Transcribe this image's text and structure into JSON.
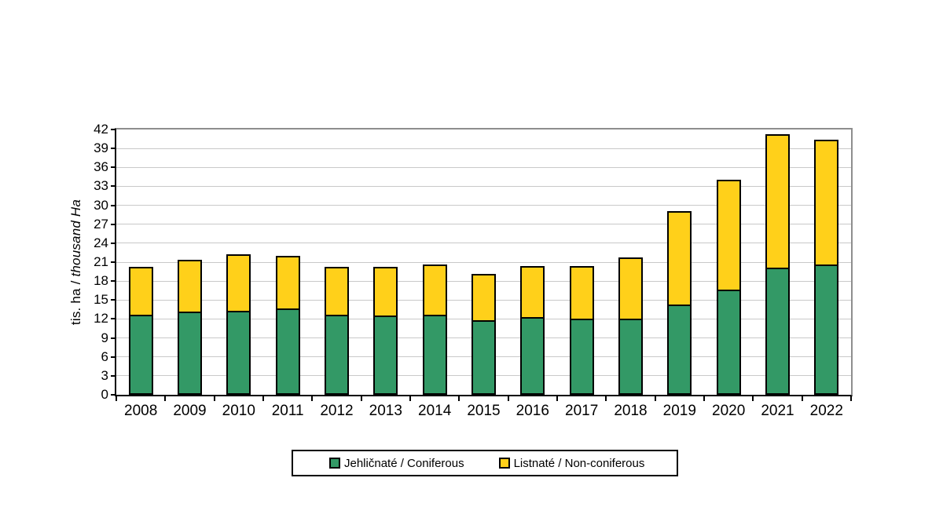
{
  "figure": {
    "ylabel_regular": "tis. ha / ",
    "ylabel_italic": "thousand Ha"
  },
  "chart_data": {
    "type": "bar",
    "stacked": true,
    "title": "",
    "xlabel": "",
    "ylabel": "tis. ha / thousand Ha",
    "categories": [
      "2008",
      "2009",
      "2010",
      "2011",
      "2012",
      "2013",
      "2014",
      "2015",
      "2016",
      "2017",
      "2018",
      "2019",
      "2020",
      "2021",
      "2022"
    ],
    "series": [
      {
        "name": "Jehličnaté / Coniferous",
        "color": "#339966",
        "values": [
          12.2,
          12.7,
          12.8,
          13.2,
          12.2,
          12.1,
          12.2,
          11.3,
          11.8,
          11.5,
          11.6,
          13.8,
          16.2,
          19.6,
          20.1
        ]
      },
      {
        "name": "Listnaté / Non-coniferous",
        "color": "#ffd01a",
        "values": [
          7.6,
          8.2,
          9.0,
          8.3,
          7.6,
          7.7,
          7.9,
          7.3,
          8.1,
          8.4,
          9.6,
          14.8,
          17.4,
          21.2,
          19.8
        ]
      }
    ],
    "totals": [
      19.8,
      20.9,
      21.8,
      21.5,
      19.8,
      19.8,
      20.1,
      18.6,
      19.9,
      19.9,
      21.2,
      28.6,
      33.6,
      40.8,
      39.9
    ],
    "ylim": [
      0,
      42
    ],
    "ytick_step": 3,
    "grid": true,
    "legend_position": "bottom-center"
  },
  "style": {
    "gridline_color": "#c9c9c9",
    "outer_border_color": "#8e8e8e",
    "axis_color": "#000000",
    "bar_border_color": "#000000",
    "background": "#ffffff"
  }
}
